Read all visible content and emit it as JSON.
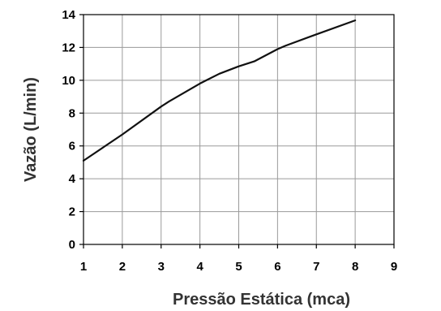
{
  "chart_data": {
    "type": "line",
    "xlabel": "Pressão Estática (mca)",
    "ylabel": "Vazão (L/min)",
    "xlim": [
      1,
      9
    ],
    "ylim": [
      0,
      14
    ],
    "x_ticks": [
      "1",
      "2",
      "3",
      "4",
      "5",
      "6",
      "7",
      "8",
      "9"
    ],
    "y_ticks": [
      "0",
      "2",
      "4",
      "6",
      "8",
      "10",
      "12",
      "14"
    ],
    "grid": true,
    "series": [
      {
        "color": "#111111",
        "x": [
          1,
          2,
          3,
          3.2,
          4,
          4.5,
          5,
          5.4,
          6,
          6.2,
          7,
          8
        ],
        "y": [
          5.1,
          6.7,
          8.4,
          8.7,
          9.8,
          10.4,
          10.85,
          11.15,
          11.9,
          12.1,
          12.8,
          13.65
        ]
      }
    ]
  }
}
